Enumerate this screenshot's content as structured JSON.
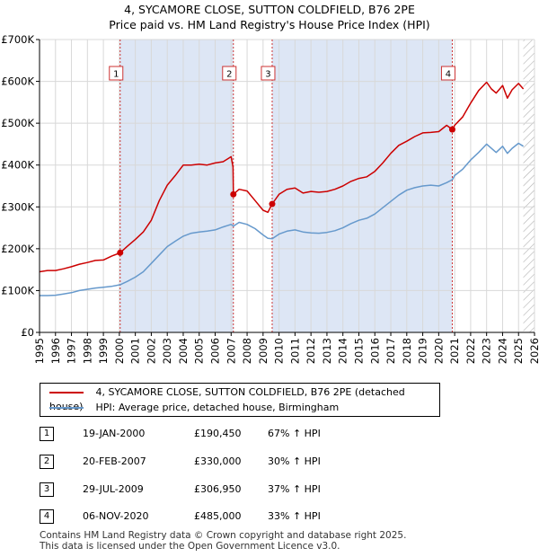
{
  "title": {
    "line1": "4, SYCAMORE CLOSE, SUTTON COLDFIELD, B76 2PE",
    "line2": "Price paid vs. HM Land Registry's House Price Index (HPI)"
  },
  "colors": {
    "property": "#cc0000",
    "hpi": "#6699cc",
    "shade": "#dde6f5",
    "hatch": "#b0b0b0",
    "marker_line": "#cc3333"
  },
  "legend": {
    "property_label": "4, SYCAMORE CLOSE, SUTTON COLDFIELD, B76 2PE (detached house)",
    "hpi_label": "HPI: Average price, detached house, Birmingham"
  },
  "sales": [
    {
      "num": "1",
      "date": "19-JAN-2000",
      "price": "£190,450",
      "hpi": "67% ↑ HPI"
    },
    {
      "num": "2",
      "date": "20-FEB-2007",
      "price": "£330,000",
      "hpi": "30% ↑ HPI"
    },
    {
      "num": "3",
      "date": "29-JUL-2009",
      "price": "£306,950",
      "hpi": "37% ↑ HPI"
    },
    {
      "num": "4",
      "date": "06-NOV-2020",
      "price": "£485,000",
      "hpi": "33% ↑ HPI"
    }
  ],
  "footer": {
    "line1": "Contains HM Land Registry data © Crown copyright and database right 2025.",
    "line2": "This data is licensed under the Open Government Licence v3.0."
  },
  "chart_data": {
    "type": "line",
    "title": "4, SYCAMORE CLOSE, SUTTON COLDFIELD, B76 2PE",
    "subtitle": "Price paid vs. HM Land Registry's House Price Index (HPI)",
    "xlabel": "",
    "ylabel": "",
    "xlim": [
      1995,
      2026
    ],
    "ylim": [
      0,
      700000
    ],
    "x_ticks": [
      "1995",
      "1996",
      "1997",
      "1998",
      "1999",
      "2000",
      "2001",
      "2002",
      "2003",
      "2004",
      "2005",
      "2006",
      "2007",
      "2008",
      "2009",
      "2010",
      "2011",
      "2012",
      "2013",
      "2014",
      "2015",
      "2016",
      "2017",
      "2018",
      "2019",
      "2020",
      "2021",
      "2022",
      "2023",
      "2024",
      "2025",
      "2026"
    ],
    "y_ticks": [
      {
        "value": 0,
        "label": "£0"
      },
      {
        "value": 100000,
        "label": "£100K"
      },
      {
        "value": 200000,
        "label": "£200K"
      },
      {
        "value": 300000,
        "label": "£300K"
      },
      {
        "value": 400000,
        "label": "£400K"
      },
      {
        "value": 500000,
        "label": "£500K"
      },
      {
        "value": 600000,
        "label": "£600K"
      },
      {
        "value": 700000,
        "label": "£700K"
      }
    ],
    "grid": true,
    "shaded_periods": [
      [
        2000.05,
        2007.14
      ],
      [
        2009.57,
        2020.85
      ]
    ],
    "hatched_from": 2025.3,
    "sale_markers": [
      {
        "label": "1",
        "x": 2000.05,
        "y": 190450
      },
      {
        "label": "2",
        "x": 2007.14,
        "y": 330000
      },
      {
        "label": "3",
        "x": 2009.57,
        "y": 306950
      },
      {
        "label": "4",
        "x": 2020.85,
        "y": 485000
      }
    ],
    "series": [
      {
        "name": "4, SYCAMORE CLOSE, SUTTON COLDFIELD, B76 2PE (detached house)",
        "x": [
          1995.0,
          1995.5,
          1996.0,
          1996.5,
          1997.0,
          1997.5,
          1998.0,
          1998.5,
          1999.0,
          1999.5,
          2000.05,
          2000.5,
          2001.0,
          2001.5,
          2002.0,
          2002.5,
          2003.0,
          2003.5,
          2004.0,
          2004.5,
          2005.0,
          2005.5,
          2006.0,
          2006.5,
          2007.0,
          2007.12,
          2007.14,
          2007.5,
          2008.0,
          2008.5,
          2009.0,
          2009.3,
          2009.57,
          2010.0,
          2010.5,
          2011.0,
          2011.5,
          2012.0,
          2012.5,
          2013.0,
          2013.5,
          2014.0,
          2014.5,
          2015.0,
          2015.5,
          2016.0,
          2016.5,
          2017.0,
          2017.5,
          2018.0,
          2018.5,
          2019.0,
          2019.5,
          2020.0,
          2020.5,
          2020.85,
          2021.0,
          2021.5,
          2022.0,
          2022.5,
          2023.0,
          2023.3,
          2023.6,
          2024.0,
          2024.3,
          2024.6,
          2025.0,
          2025.3
        ],
        "y": [
          145000,
          148000,
          148000,
          152000,
          157000,
          163000,
          167000,
          172000,
          173000,
          182000,
          190450,
          206000,
          222000,
          240000,
          268000,
          315000,
          352000,
          375000,
          400000,
          400000,
          402000,
          400000,
          405000,
          408000,
          420000,
          395000,
          330000,
          342000,
          338000,
          315000,
          292000,
          287000,
          306950,
          330000,
          342000,
          345000,
          333000,
          337000,
          335000,
          337000,
          342000,
          350000,
          361000,
          368000,
          372000,
          385000,
          405000,
          428000,
          447000,
          457000,
          468000,
          477000,
          478000,
          480000,
          495000,
          485000,
          495000,
          515000,
          548000,
          578000,
          598000,
          582000,
          572000,
          590000,
          560000,
          580000,
          595000,
          582000
        ]
      },
      {
        "name": "HPI: Average price, detached house, Birmingham",
        "x": [
          1995.0,
          1995.5,
          1996.0,
          1996.5,
          1997.0,
          1997.5,
          1998.0,
          1998.5,
          1999.0,
          1999.5,
          2000.05,
          2000.5,
          2001.0,
          2001.5,
          2002.0,
          2002.5,
          2003.0,
          2003.5,
          2004.0,
          2004.5,
          2005.0,
          2005.5,
          2006.0,
          2006.5,
          2007.0,
          2007.14,
          2007.5,
          2008.0,
          2008.5,
          2009.0,
          2009.3,
          2009.57,
          2010.0,
          2010.5,
          2011.0,
          2011.5,
          2012.0,
          2012.5,
          2013.0,
          2013.5,
          2014.0,
          2014.5,
          2015.0,
          2015.5,
          2016.0,
          2016.5,
          2017.0,
          2017.5,
          2018.0,
          2018.5,
          2019.0,
          2019.5,
          2020.0,
          2020.5,
          2020.85,
          2021.0,
          2021.5,
          2022.0,
          2022.5,
          2023.0,
          2023.3,
          2023.6,
          2024.0,
          2024.3,
          2024.6,
          2025.0,
          2025.3
        ],
        "y": [
          88000,
          88000,
          89000,
          92000,
          95000,
          100000,
          103000,
          106000,
          108000,
          110000,
          114000,
          122000,
          132000,
          145000,
          165000,
          185000,
          205000,
          218000,
          230000,
          237000,
          240000,
          242000,
          245000,
          252000,
          258000,
          254000,
          263000,
          258000,
          248000,
          233000,
          225000,
          224000,
          235000,
          242000,
          245000,
          240000,
          238000,
          237000,
          239000,
          243000,
          250000,
          260000,
          268000,
          273000,
          283000,
          298000,
          313000,
          328000,
          340000,
          346000,
          350000,
          352000,
          350000,
          358000,
          365000,
          375000,
          390000,
          412000,
          430000,
          450000,
          440000,
          430000,
          445000,
          428000,
          440000,
          452000,
          445000
        ]
      }
    ]
  }
}
